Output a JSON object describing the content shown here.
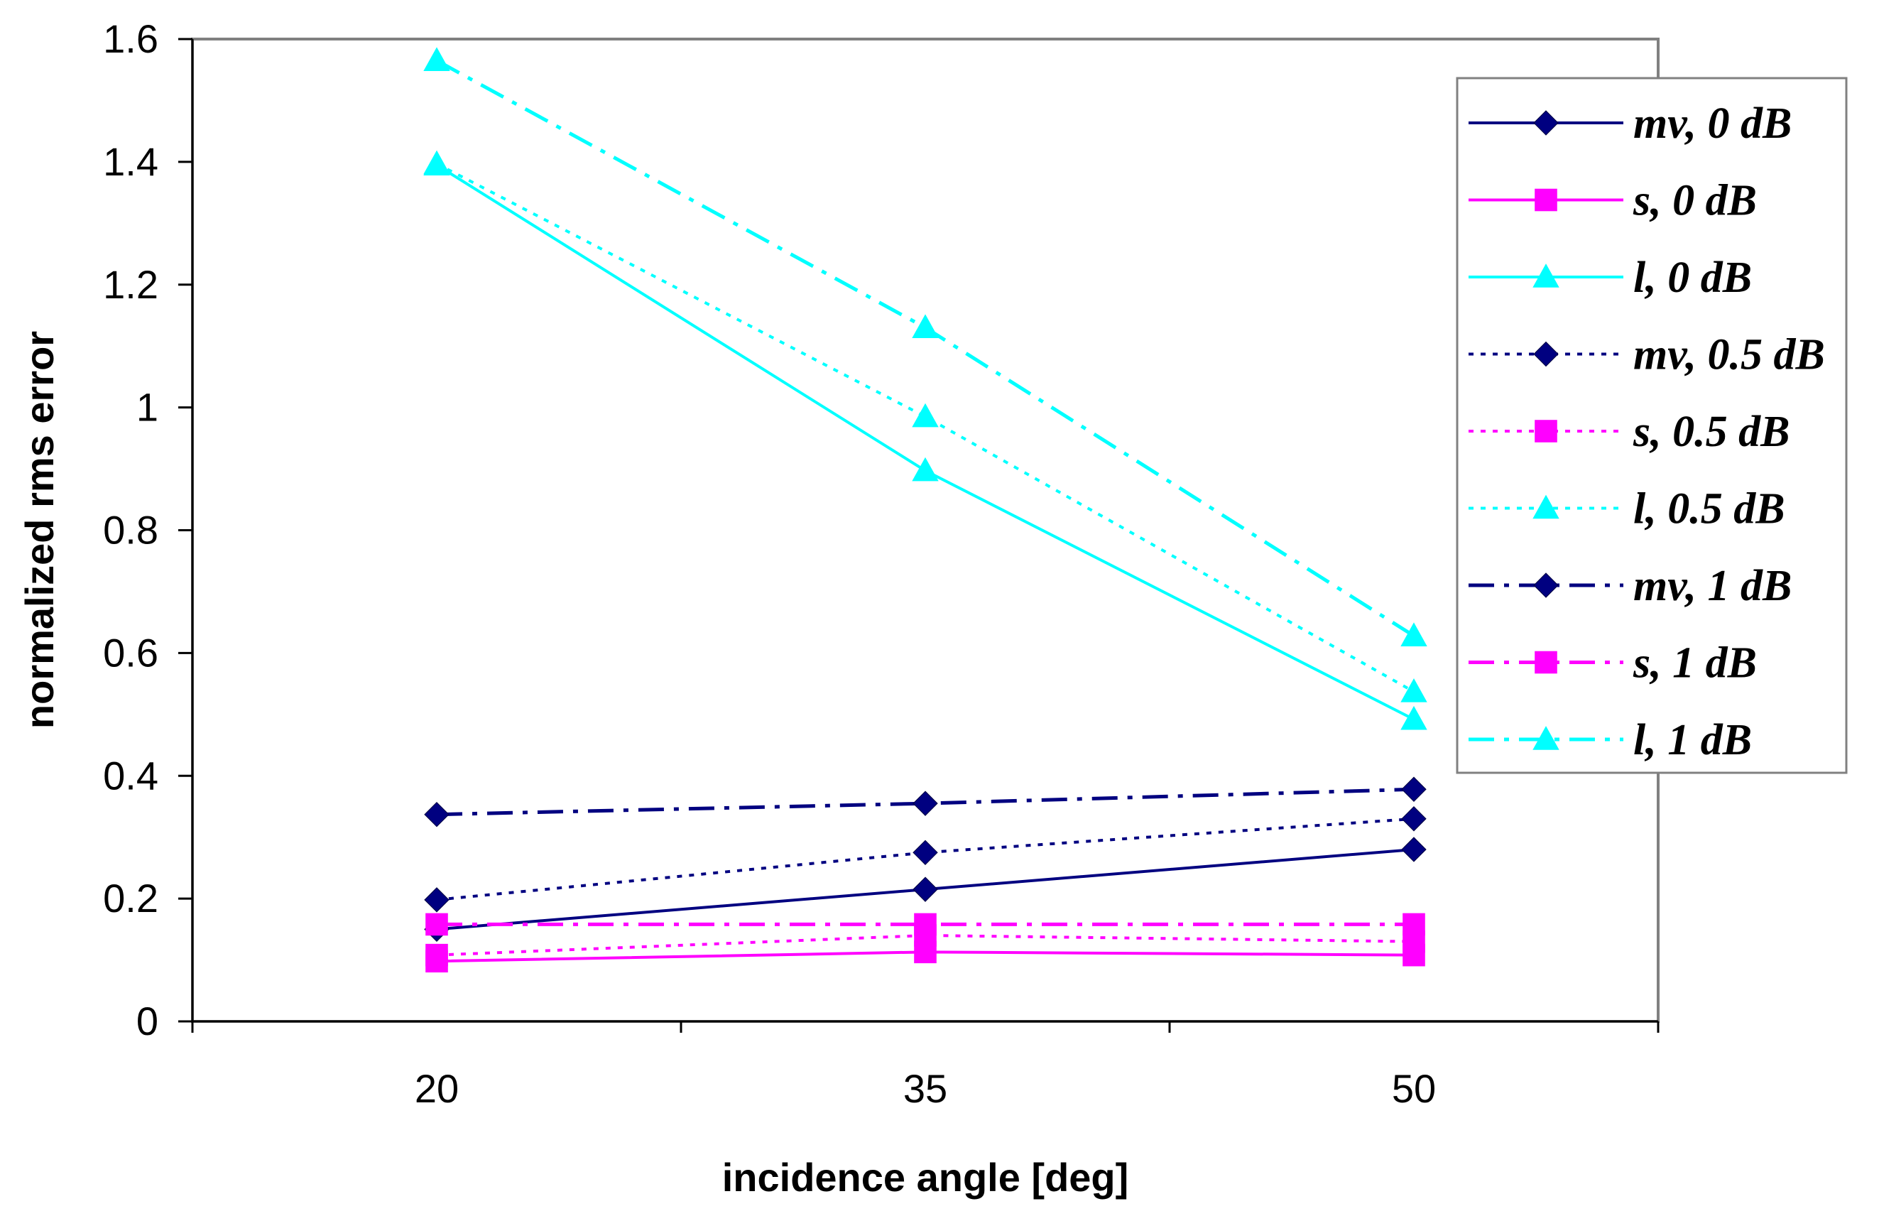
{
  "chart_data": {
    "type": "line",
    "xlabel": "incidence angle [deg]",
    "ylabel": "normalized rms error",
    "categories": [
      "20",
      "35",
      "50"
    ],
    "ylim": [
      0,
      1.6
    ],
    "yticks": [
      "0",
      "0.2",
      "0.4",
      "0.6",
      "0.8",
      "1",
      "1.2",
      "1.4",
      "1.6"
    ],
    "grid": false,
    "legend_position": "top-right",
    "series": [
      {
        "name": "mv, 0 dB",
        "values": [
          0.15,
          0.215,
          0.28
        ],
        "color": "#000080",
        "dash": "solid",
        "marker": "diamond"
      },
      {
        "name": "s, 0 dB",
        "values": [
          0.098,
          0.113,
          0.108
        ],
        "color": "#FF00FF",
        "dash": "solid",
        "marker": "square"
      },
      {
        "name": "l, 0 dB",
        "values": [
          1.395,
          0.897,
          0.492
        ],
        "color": "#00FFFF",
        "dash": "solid",
        "marker": "triangle"
      },
      {
        "name": "mv, 0.5 dB",
        "values": [
          0.198,
          0.275,
          0.33
        ],
        "color": "#000080",
        "dash": "dotted",
        "marker": "diamond"
      },
      {
        "name": "s, 0.5 dB",
        "values": [
          0.108,
          0.14,
          0.13
        ],
        "color": "#FF00FF",
        "dash": "dotted",
        "marker": "square"
      },
      {
        "name": "l, 0.5 dB",
        "values": [
          1.397,
          0.985,
          0.537
        ],
        "color": "#00FFFF",
        "dash": "dotted",
        "marker": "triangle"
      },
      {
        "name": "mv, 1 dB",
        "values": [
          0.337,
          0.355,
          0.378
        ],
        "color": "#000080",
        "dash": "dashdot",
        "marker": "diamond"
      },
      {
        "name": "s, 1 dB",
        "values": [
          0.158,
          0.158,
          0.158
        ],
        "color": "#FF00FF",
        "dash": "dashdot",
        "marker": "square"
      },
      {
        "name": "l, 1 dB",
        "values": [
          1.565,
          1.13,
          0.628
        ],
        "color": "#00FFFF",
        "dash": "dashdot",
        "marker": "triangle"
      }
    ]
  }
}
